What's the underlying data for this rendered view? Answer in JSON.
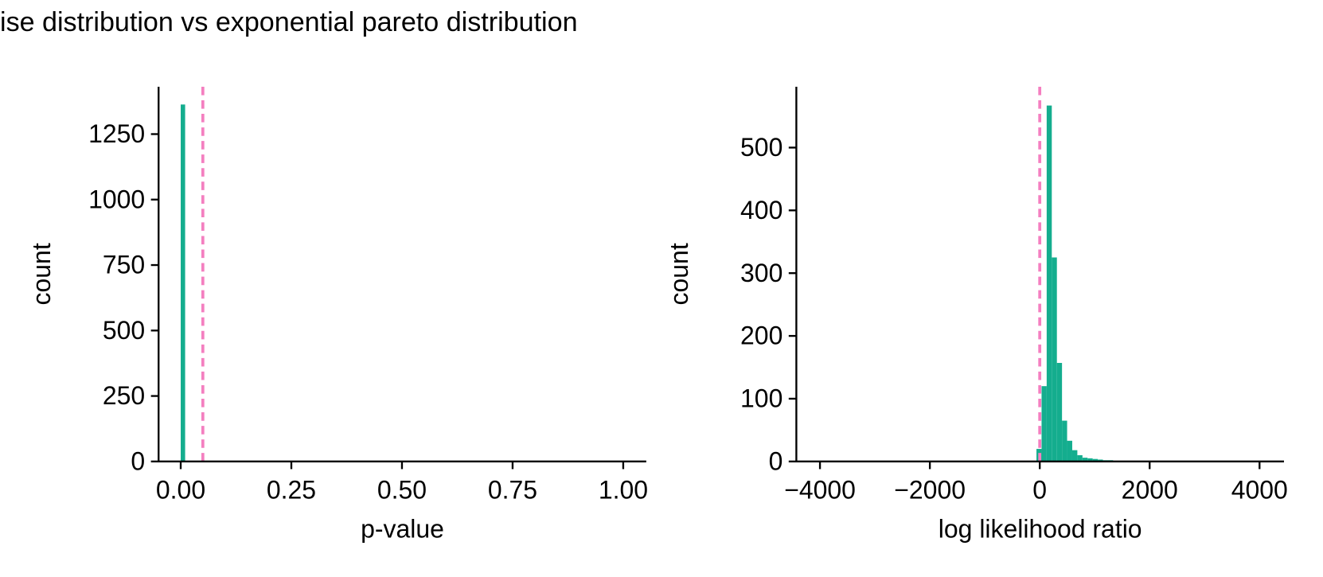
{
  "title": "ise distribution vs exponential pareto distribution",
  "chart_data": [
    {
      "type": "histogram",
      "xlabel": "p-value",
      "ylabel": "count",
      "color": "#14ad8e",
      "bins": [
        0,
        0.01
      ],
      "values": [
        1363
      ],
      "xlim": [
        -0.05,
        1.052
      ],
      "ylim": [
        0,
        1431
      ],
      "xticks": [
        {
          "value": 0,
          "label": "0.00"
        },
        {
          "value": 0.25,
          "label": "0.25"
        },
        {
          "value": 0.5,
          "label": "0.50"
        },
        {
          "value": 0.75,
          "label": "0.75"
        },
        {
          "value": 1,
          "label": "1.00"
        }
      ],
      "yticks": [
        0,
        250,
        500,
        750,
        1000,
        1250
      ],
      "reference_line": {
        "value": 0.05,
        "color": "#f47fc0"
      }
    },
    {
      "type": "histogram",
      "xlabel": "log likelihood ratio",
      "ylabel": "count",
      "color": "#14ad8e",
      "bins": [
        -60,
        33,
        126,
        219,
        312,
        405,
        498,
        591,
        684,
        777,
        870,
        963,
        1056,
        1149,
        1242,
        1335,
        1428
      ],
      "values": [
        20,
        120,
        567,
        325,
        157,
        65,
        33,
        18,
        10,
        6,
        5,
        4,
        3,
        2,
        2,
        1
      ],
      "xlim": [
        -4430,
        4445
      ],
      "ylim": [
        0,
        597
      ],
      "xticks": [
        {
          "value": -4000,
          "label": "−4000"
        },
        {
          "value": -2000,
          "label": "−2000"
        },
        0,
        2000,
        4000
      ],
      "yticks": [
        0,
        100,
        200,
        300,
        400,
        500
      ],
      "reference_line": {
        "value": 0,
        "color": "#f47fc0"
      }
    }
  ]
}
